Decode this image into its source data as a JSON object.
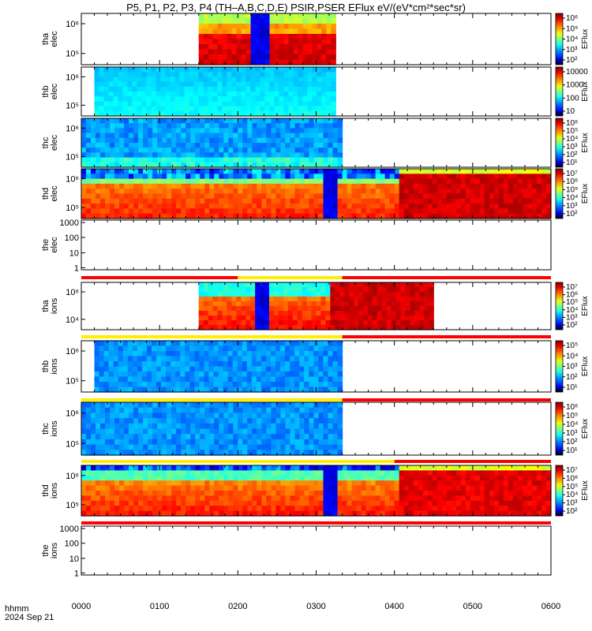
{
  "title": "P5, P1, P2, P3, P4 (TH–A,B,C,D,E) PSIR,PSER EFlux eV/(eV*cm²*sec*sr)",
  "time_axis": {
    "label_line1": "hhmm",
    "label_line2": "2024 Sep 21",
    "ticks": [
      "0000",
      "0100",
      "0200",
      "0300",
      "0400",
      "0500",
      "0600"
    ]
  },
  "chart_data": [
    {
      "type": "heatmap",
      "panel": "tha-elec",
      "ylabel": [
        "tha",
        "elec"
      ],
      "yticks": [
        "10⁶",
        "10⁵"
      ],
      "colorbar": {
        "label": "EFlux",
        "ticks": [
          "10⁶",
          "10⁵",
          "10⁴",
          "10³",
          "10²"
        ]
      },
      "time_coverage_hhmm": [
        "0130",
        "0315"
      ],
      "features": [
        {
          "type": "low-flux dropout",
          "time_hhmm": "0220"
        }
      ]
    },
    {
      "type": "heatmap",
      "panel": "thb-elec",
      "ylabel": [
        "thb",
        "elec"
      ],
      "yticks": [
        "10⁶",
        "10⁵"
      ],
      "colorbar": {
        "label": "EFlux",
        "ticks": [
          "10000",
          "1000",
          "100",
          "10"
        ]
      },
      "time_coverage_hhmm": [
        "0010",
        "0315"
      ]
    },
    {
      "type": "heatmap",
      "panel": "thc-elec",
      "ylabel": [
        "thc",
        "elec"
      ],
      "yticks": [
        "10⁶",
        "10⁵"
      ],
      "colorbar": {
        "label": "EFlux",
        "ticks": [
          "10⁶",
          "10⁵",
          "10⁴",
          "10³",
          "10²",
          "10¹"
        ]
      },
      "time_coverage_hhmm": [
        "0000",
        "0320"
      ]
    },
    {
      "type": "heatmap",
      "panel": "thd-elec",
      "ylabel": [
        "thd",
        "elec"
      ],
      "yticks": [
        "10⁶",
        "10⁵"
      ],
      "colorbar": {
        "label": "EFlux",
        "ticks": [
          "10⁷",
          "10⁶",
          "10⁵",
          "10⁴",
          "10³",
          "10²"
        ]
      },
      "time_coverage_hhmm": [
        "0000",
        "0600"
      ],
      "features": [
        {
          "type": "low-flux dropout",
          "time_hhmm": "0315"
        }
      ]
    },
    {
      "type": "heatmap",
      "panel": "the-elec",
      "ylabel": [
        "the",
        "elec"
      ],
      "yticks": [
        "1000",
        "100",
        "10",
        "1"
      ],
      "colorbar": null,
      "time_coverage_hhmm": []
    },
    {
      "type": "heatmap",
      "panel": "tha-ions",
      "ylabel": [
        "tha",
        "ions"
      ],
      "yticks": [
        "10⁶",
        "10⁴"
      ],
      "colorbar": {
        "label": "EFlux",
        "ticks": [
          "10⁷",
          "10⁶",
          "10⁵",
          "10⁴",
          "10³",
          "10²"
        ]
      },
      "time_coverage_hhmm": [
        "0130",
        "0430"
      ],
      "features": [
        {
          "type": "low-flux dropout",
          "time_hhmm": "0220"
        }
      ]
    },
    {
      "type": "heatmap",
      "panel": "thb-ions",
      "ylabel": [
        "thb",
        "ions"
      ],
      "yticks": [
        "10⁶",
        "10⁵"
      ],
      "colorbar": {
        "label": "EFlux",
        "ticks": [
          "10⁵",
          "10⁴",
          "10³",
          "10²",
          "10¹"
        ]
      },
      "time_coverage_hhmm": [
        "0010",
        "0320"
      ]
    },
    {
      "type": "heatmap",
      "panel": "thc-ions",
      "ylabel": [
        "thc",
        "ions"
      ],
      "yticks": [
        "10⁶",
        "10⁵"
      ],
      "colorbar": {
        "label": "EFlux",
        "ticks": [
          "10⁶",
          "10⁵",
          "10⁴",
          "10³",
          "10²",
          "10¹"
        ]
      },
      "time_coverage_hhmm": [
        "0000",
        "0320"
      ]
    },
    {
      "type": "heatmap",
      "panel": "thd-ions",
      "ylabel": [
        "thd",
        "ions"
      ],
      "yticks": [
        "10⁶",
        "10⁵"
      ],
      "colorbar": {
        "label": "EFlux",
        "ticks": [
          "10⁷",
          "10⁶",
          "10⁵",
          "10⁴",
          "10³",
          "10²"
        ]
      },
      "time_coverage_hhmm": [
        "0000",
        "0600"
      ],
      "features": [
        {
          "type": "low-flux dropout",
          "time_hhmm": "0315"
        }
      ]
    },
    {
      "type": "heatmap",
      "panel": "the-ions",
      "ylabel": [
        "the",
        "ions"
      ],
      "yticks": [
        "1000",
        "100",
        "10",
        "1"
      ],
      "colorbar": null,
      "time_coverage_hhmm": []
    }
  ],
  "mode_bars_colors": {
    "fast": "#ffee00",
    "slow": "#ff0000",
    "burst": "#000000"
  },
  "x_range_hhmm": [
    "0000",
    "0600"
  ]
}
